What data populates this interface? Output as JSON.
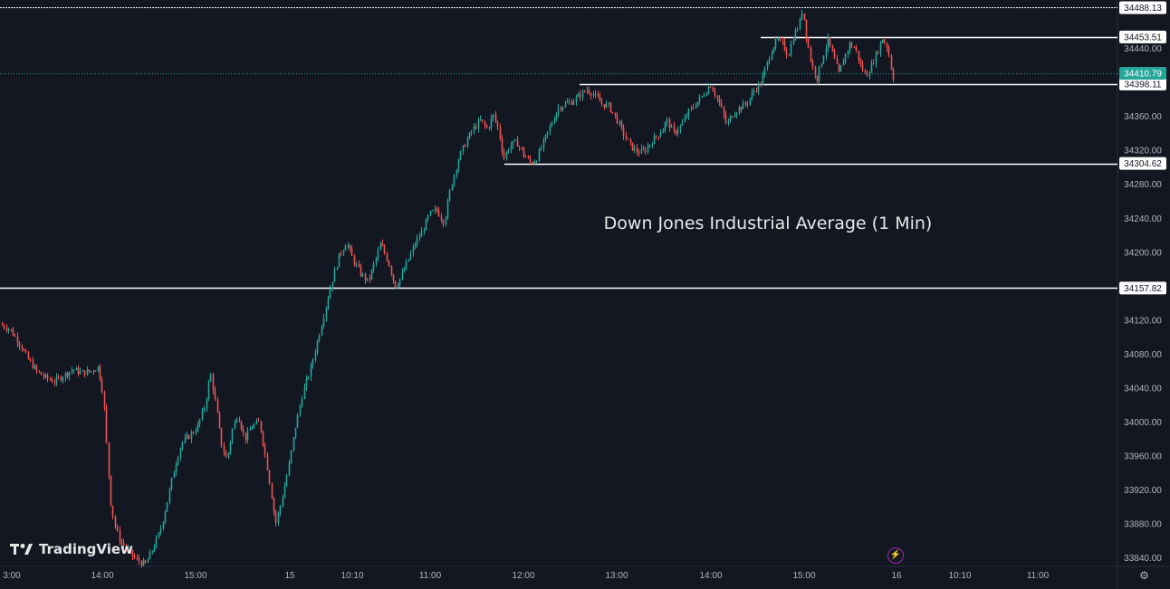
{
  "chart_data": {
    "type": "candlestick",
    "title": "Down Jones Industrial Average (1 Min)",
    "y_axis": {
      "ticks": [
        33840.0,
        33880.0,
        33920.0,
        33960.0,
        34000.0,
        34040.0,
        34080.0,
        34120.0,
        34160.0,
        34200.0,
        34240.0,
        34280.0,
        34320.0,
        34360.0,
        34400.0,
        34440.0
      ],
      "range": [
        33830,
        34495
      ]
    },
    "x_axis": {
      "tick_labels": [
        "3:00",
        "14:00",
        "15:00",
        "15",
        "10:10",
        "11:00",
        "12:00",
        "13:00",
        "14:00",
        "15:00",
        "16",
        "10:10",
        "11:00"
      ]
    },
    "current_price": 34410.79,
    "horizontal_levels": [
      {
        "price": 34488.13,
        "label": "34488.13"
      },
      {
        "price": 34453.51,
        "label": "34453.51"
      },
      {
        "price": 34398.11,
        "label": "34398.11"
      },
      {
        "price": 34304.62,
        "label": "34304.62"
      },
      {
        "price": 34157.82,
        "label": "34157.82"
      }
    ],
    "price_path": [
      [
        0,
        34115
      ],
      [
        10,
        34110
      ],
      [
        20,
        34095
      ],
      [
        30,
        34075
      ],
      [
        40,
        34060
      ],
      [
        50,
        34052
      ],
      [
        60,
        34048
      ],
      [
        70,
        34055
      ],
      [
        80,
        34062
      ],
      [
        90,
        34058
      ],
      [
        100,
        34060
      ],
      [
        108,
        34065
      ],
      [
        114,
        34030
      ],
      [
        118,
        33960
      ],
      [
        122,
        33905
      ],
      [
        126,
        33880
      ],
      [
        132,
        33860
      ],
      [
        140,
        33850
      ],
      [
        150,
        33838
      ],
      [
        160,
        33832
      ],
      [
        168,
        33850
      ],
      [
        176,
        33870
      ],
      [
        184,
        33905
      ],
      [
        192,
        33945
      ],
      [
        200,
        33975
      ],
      [
        210,
        33985
      ],
      [
        218,
        33995
      ],
      [
        226,
        34020
      ],
      [
        232,
        34058
      ],
      [
        238,
        34020
      ],
      [
        244,
        33975
      ],
      [
        250,
        33955
      ],
      [
        256,
        33990
      ],
      [
        262,
        34010
      ],
      [
        270,
        33980
      ],
      [
        278,
        33995
      ],
      [
        286,
        34000
      ],
      [
        292,
        33965
      ],
      [
        298,
        33925
      ],
      [
        304,
        33880
      ],
      [
        310,
        33905
      ],
      [
        318,
        33945
      ],
      [
        326,
        33995
      ],
      [
        334,
        34035
      ],
      [
        342,
        34060
      ],
      [
        350,
        34095
      ],
      [
        358,
        34130
      ],
      [
        366,
        34165
      ],
      [
        374,
        34195
      ],
      [
        382,
        34212
      ],
      [
        390,
        34190
      ],
      [
        398,
        34175
      ],
      [
        406,
        34165
      ],
      [
        414,
        34190
      ],
      [
        420,
        34210
      ],
      [
        428,
        34190
      ],
      [
        436,
        34160
      ],
      [
        442,
        34170
      ],
      [
        450,
        34190
      ],
      [
        458,
        34210
      ],
      [
        466,
        34225
      ],
      [
        474,
        34245
      ],
      [
        482,
        34250
      ],
      [
        490,
        34235
      ],
      [
        498,
        34280
      ],
      [
        506,
        34310
      ],
      [
        514,
        34330
      ],
      [
        522,
        34345
      ],
      [
        530,
        34355
      ],
      [
        538,
        34345
      ],
      [
        544,
        34362
      ],
      [
        550,
        34345
      ],
      [
        556,
        34310
      ],
      [
        562,
        34325
      ],
      [
        570,
        34330
      ],
      [
        578,
        34315
      ],
      [
        586,
        34305
      ],
      [
        592,
        34310
      ],
      [
        600,
        34330
      ],
      [
        608,
        34350
      ],
      [
        616,
        34370
      ],
      [
        624,
        34375
      ],
      [
        632,
        34378
      ],
      [
        640,
        34385
      ],
      [
        648,
        34392
      ],
      [
        656,
        34385
      ],
      [
        664,
        34375
      ],
      [
        672,
        34372
      ],
      [
        680,
        34358
      ],
      [
        688,
        34340
      ],
      [
        696,
        34325
      ],
      [
        704,
        34318
      ],
      [
        712,
        34320
      ],
      [
        720,
        34332
      ],
      [
        728,
        34340
      ],
      [
        736,
        34355
      ],
      [
        744,
        34340
      ],
      [
        752,
        34350
      ],
      [
        760,
        34365
      ],
      [
        768,
        34375
      ],
      [
        776,
        34385
      ],
      [
        784,
        34398
      ],
      [
        790,
        34385
      ],
      [
        796,
        34370
      ],
      [
        802,
        34350
      ],
      [
        808,
        34362
      ],
      [
        816,
        34370
      ],
      [
        824,
        34375
      ],
      [
        832,
        34390
      ],
      [
        840,
        34400
      ],
      [
        846,
        34420
      ],
      [
        852,
        34440
      ],
      [
        858,
        34450
      ],
      [
        864,
        34445
      ],
      [
        870,
        34432
      ],
      [
        876,
        34455
      ],
      [
        882,
        34468
      ],
      [
        886,
        34488
      ],
      [
        890,
        34455
      ],
      [
        896,
        34420
      ],
      [
        902,
        34405
      ],
      [
        908,
        34430
      ],
      [
        914,
        34450
      ],
      [
        920,
        34430
      ],
      [
        926,
        34410
      ],
      [
        932,
        34430
      ],
      [
        938,
        34445
      ],
      [
        944,
        34440
      ],
      [
        950,
        34420
      ],
      [
        956,
        34408
      ],
      [
        962,
        34420
      ],
      [
        968,
        34435
      ],
      [
        974,
        34452
      ],
      [
        980,
        34440
      ],
      [
        984,
        34415
      ],
      [
        988,
        34398
      ]
    ]
  },
  "branding": {
    "logo_text": "TradingView"
  },
  "icons": {
    "replay": "lightning-icon",
    "settings": "gear-icon"
  },
  "colors": {
    "background": "#131722",
    "up": "#26a69a",
    "down": "#ef5350",
    "level_line": "#ffffff",
    "current_price": "#26a69a",
    "axis_text": "#b2b5be"
  }
}
